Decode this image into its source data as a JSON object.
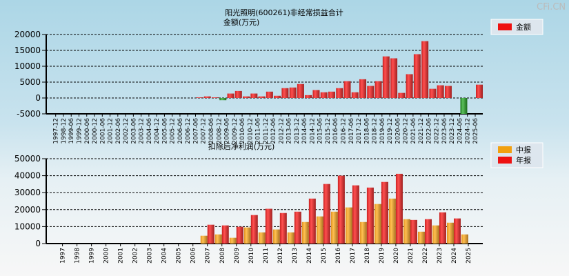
{
  "watermark": "CFi.CN",
  "colors": {
    "red": "#ee2222",
    "green": "#2a9a2a",
    "orange": "#f2a628"
  },
  "chart_data": [
    {
      "type": "bar",
      "title": "阳光照明(600261)非经常损益合计",
      "ylabel": "金额(万元)",
      "legend": [
        "金额"
      ],
      "legend_position": "top-right",
      "ylim": [
        -5000,
        20000
      ],
      "yticks": [
        "20000",
        "15000",
        "10000",
        "5000",
        "0",
        "-5000"
      ],
      "yticks_values": [
        20000,
        15000,
        10000,
        5000,
        0,
        -5000
      ],
      "categories": [
        "1997-12",
        "1998-12",
        "1999-06",
        "1999-12",
        "2000-06",
        "2000-12",
        "2001-06",
        "2001-12",
        "2002-06",
        "2002-12",
        "2003-06",
        "2003-12",
        "2004-06",
        "2004-12",
        "2005-06",
        "2005-12",
        "2006-06",
        "2006-12",
        "2007-06",
        "2007-12",
        "2008-06",
        "2008-12",
        "2009-06",
        "2009-12",
        "2010-06",
        "2010-12",
        "2011-06",
        "2011-12",
        "2012-06",
        "2012-12",
        "2013-06",
        "2013-12",
        "2014-06",
        "2014-12",
        "2015-06",
        "2015-12",
        "2016-06",
        "2016-12",
        "2017-06",
        "2017-12",
        "2018-06",
        "2018-12",
        "2019-06",
        "2019-12",
        "2020-06",
        "2020-12",
        "2021-06",
        "2021-12",
        "2022-06",
        "2022-12",
        "2023-06",
        "2023-12",
        "2024-06",
        "2024-12",
        "2025-06"
      ],
      "values": [
        0,
        0,
        0,
        0,
        0,
        0,
        0,
        0,
        0,
        0,
        0,
        0,
        0,
        0,
        0,
        0,
        0,
        0,
        200,
        500,
        200,
        -700,
        1400,
        2200,
        500,
        1400,
        500,
        2000,
        700,
        3100,
        3300,
        4400,
        900,
        2500,
        1800,
        2000,
        3100,
        5300,
        1800,
        5900,
        3800,
        5300,
        13100,
        12500,
        1600,
        7500,
        13800,
        17900,
        2900,
        4000,
        3800,
        0,
        -5000,
        0,
        4200
      ],
      "grid": true
    },
    {
      "type": "bar",
      "title": "扣除后净利润(万元)",
      "legend": [
        "中报",
        "年报"
      ],
      "legend_position": "top-right",
      "ylim": [
        0,
        50000
      ],
      "yticks": [
        "50000",
        "40000",
        "30000",
        "20000",
        "10000",
        "0"
      ],
      "yticks_values": [
        50000,
        40000,
        30000,
        20000,
        10000,
        0
      ],
      "categories": [
        "1997",
        "1998",
        "1999",
        "2000",
        "2001",
        "2002",
        "2003",
        "2004",
        "2005",
        "2006",
        "2007",
        "2008",
        "2009",
        "2010",
        "2011",
        "2012",
        "2013",
        "2014",
        "2015",
        "2016",
        "2017",
        "2018",
        "2019",
        "2020",
        "2021",
        "2022",
        "2023",
        "2024",
        "2025"
      ],
      "series": [
        {
          "name": "中报",
          "values": [
            null,
            null,
            null,
            null,
            null,
            null,
            null,
            null,
            null,
            null,
            4600,
            5400,
            3400,
            9500,
            6600,
            8300,
            6600,
            12700,
            16000,
            18800,
            21300,
            12700,
            23300,
            26500,
            14400,
            7000,
            10700,
            12300,
            5400
          ]
        },
        {
          "name": "年报",
          "values": [
            null,
            null,
            null,
            null,
            null,
            null,
            null,
            null,
            null,
            null,
            11100,
            10700,
            9900,
            16800,
            20500,
            18000,
            18800,
            26500,
            35100,
            40000,
            34300,
            33000,
            36300,
            41100,
            13900,
            14400,
            18400,
            14800,
            null
          ]
        }
      ],
      "grid": true
    }
  ]
}
